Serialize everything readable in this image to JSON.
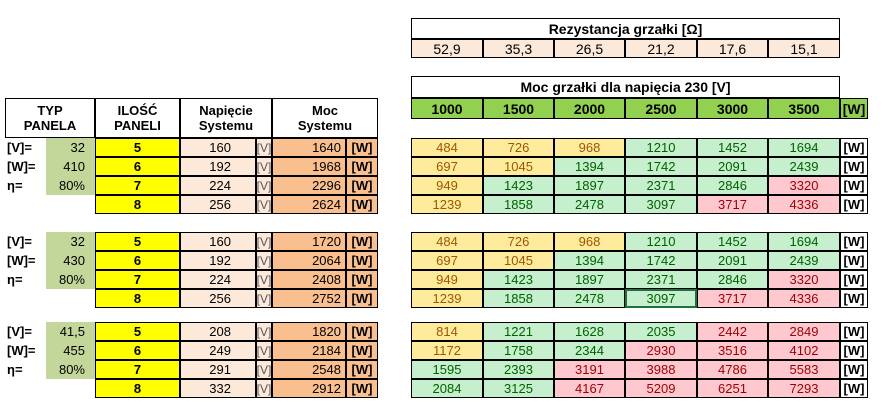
{
  "resistance": {
    "title": "Rezystancja grzałki [Ω]",
    "values": [
      "52,9",
      "35,3",
      "26,5",
      "21,2",
      "17,6",
      "15,1"
    ]
  },
  "power": {
    "title": "Moc grzałki dla napięcia 230 [V]",
    "headers": [
      "1000",
      "1500",
      "2000",
      "2500",
      "3000",
      "3500"
    ],
    "unit": "[W]"
  },
  "left_headers": {
    "typ": [
      "TYP",
      "PANELA"
    ],
    "ilosc": [
      "ILOŚĆ",
      "PANELI"
    ],
    "napiecie": [
      "Napięcie",
      "Systemu"
    ],
    "moc": [
      "Moc",
      "Systemu"
    ]
  },
  "units": {
    "v": "[V]",
    "w": "[W]"
  },
  "colors": {
    "panel_green": "#c4d79b",
    "count_yellow": "#ffff00",
    "voltage_peach": "#fde9d9",
    "power_orange": "#fabf8f",
    "resistance_peach": "#fde9d9",
    "header_green": "#92d050",
    "cf_yellow": "#ffeb9c",
    "cf_green": "#c6efce",
    "cf_red": "#ffc7ce"
  },
  "groups": [
    {
      "params": [
        {
          "label": "[V]=",
          "value": "32"
        },
        {
          "label": "[W]=",
          "value": "410"
        },
        {
          "label": "η=",
          "value": "80%"
        }
      ],
      "rows": [
        {
          "n": "5",
          "v": "160",
          "p": "1640",
          "vals": [
            "484",
            "726",
            "968",
            "1210",
            "1452",
            "1694"
          ],
          "cf": [
            "y",
            "y",
            "y",
            "g",
            "g",
            "g"
          ]
        },
        {
          "n": "6",
          "v": "192",
          "p": "1968",
          "vals": [
            "697",
            "1045",
            "1394",
            "1742",
            "2091",
            "2439"
          ],
          "cf": [
            "y",
            "y",
            "g",
            "g",
            "g",
            "g"
          ]
        },
        {
          "n": "7",
          "v": "224",
          "p": "2296",
          "vals": [
            "949",
            "1423",
            "1897",
            "2371",
            "2846",
            "3320"
          ],
          "cf": [
            "y",
            "g",
            "g",
            "g",
            "g",
            "r"
          ]
        },
        {
          "n": "8",
          "v": "256",
          "p": "2624",
          "vals": [
            "1239",
            "1858",
            "2478",
            "3097",
            "3717",
            "4336"
          ],
          "cf": [
            "y",
            "g",
            "g",
            "g",
            "r",
            "r"
          ]
        }
      ]
    },
    {
      "params": [
        {
          "label": "[V]=",
          "value": "32"
        },
        {
          "label": "[W]=",
          "value": "430"
        },
        {
          "label": "η=",
          "value": "80%"
        }
      ],
      "rows": [
        {
          "n": "5",
          "v": "160",
          "p": "1720",
          "vals": [
            "484",
            "726",
            "968",
            "1210",
            "1452",
            "1694"
          ],
          "cf": [
            "y",
            "y",
            "y",
            "g",
            "g",
            "g"
          ]
        },
        {
          "n": "6",
          "v": "192",
          "p": "2064",
          "vals": [
            "697",
            "1045",
            "1394",
            "1742",
            "2091",
            "2439"
          ],
          "cf": [
            "y",
            "y",
            "g",
            "g",
            "g",
            "g"
          ]
        },
        {
          "n": "7",
          "v": "224",
          "p": "2408",
          "vals": [
            "949",
            "1423",
            "1897",
            "2371",
            "2846",
            "3320"
          ],
          "cf": [
            "y",
            "g",
            "g",
            "g",
            "g",
            "r"
          ]
        },
        {
          "n": "8",
          "v": "256",
          "p": "2752",
          "vals": [
            "1239",
            "1858",
            "2478",
            "3097",
            "3717",
            "4336"
          ],
          "cf": [
            "y",
            "g",
            "g",
            "g",
            "r",
            "r"
          ]
        }
      ]
    },
    {
      "params": [
        {
          "label": "[V]=",
          "value": "41,5"
        },
        {
          "label": "[W]=",
          "value": "455"
        },
        {
          "label": "η=",
          "value": "80%"
        }
      ],
      "rows": [
        {
          "n": "5",
          "v": "208",
          "p": "1820",
          "vals": [
            "814",
            "1221",
            "1628",
            "2035",
            "2442",
            "2849"
          ],
          "cf": [
            "y",
            "g",
            "g",
            "g",
            "r",
            "r"
          ]
        },
        {
          "n": "6",
          "v": "249",
          "p": "2184",
          "vals": [
            "1172",
            "1758",
            "2344",
            "2930",
            "3516",
            "4102"
          ],
          "cf": [
            "y",
            "g",
            "g",
            "r",
            "r",
            "r"
          ]
        },
        {
          "n": "7",
          "v": "291",
          "p": "2548",
          "vals": [
            "1595",
            "2393",
            "3191",
            "3988",
            "4786",
            "5583"
          ],
          "cf": [
            "g",
            "g",
            "r",
            "r",
            "r",
            "r"
          ]
        },
        {
          "n": "8",
          "v": "332",
          "p": "2912",
          "vals": [
            "2084",
            "3125",
            "4167",
            "5209",
            "6251",
            "7293"
          ],
          "cf": [
            "g",
            "g",
            "r",
            "r",
            "r",
            "r"
          ]
        }
      ]
    }
  ]
}
